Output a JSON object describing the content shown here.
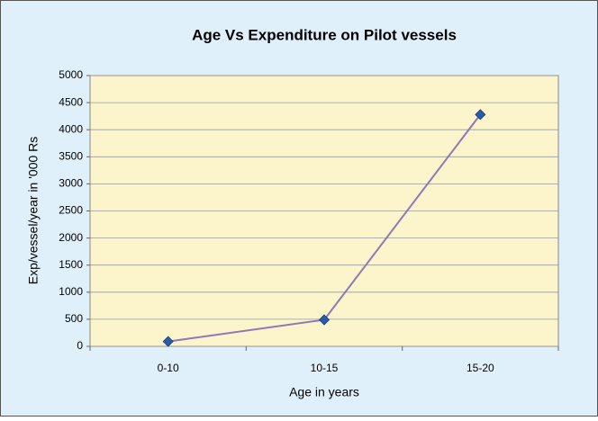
{
  "chart_data": {
    "type": "line",
    "title": "Age Vs Expenditure on Pilot vessels",
    "xlabel": "Age in years",
    "ylabel": "Exp/vessel/year in '000 Rs",
    "categories": [
      "0-10",
      "10-15",
      "15-20"
    ],
    "values": [
      90,
      490,
      4280
    ],
    "color": "#8e78b6",
    "marker_color": "#2b5ca6",
    "ylim": [
      0,
      5000
    ],
    "yticks": [
      0,
      500,
      1000,
      1500,
      2000,
      2500,
      3000,
      3500,
      4000,
      4500,
      5000
    ],
    "grid": true
  }
}
